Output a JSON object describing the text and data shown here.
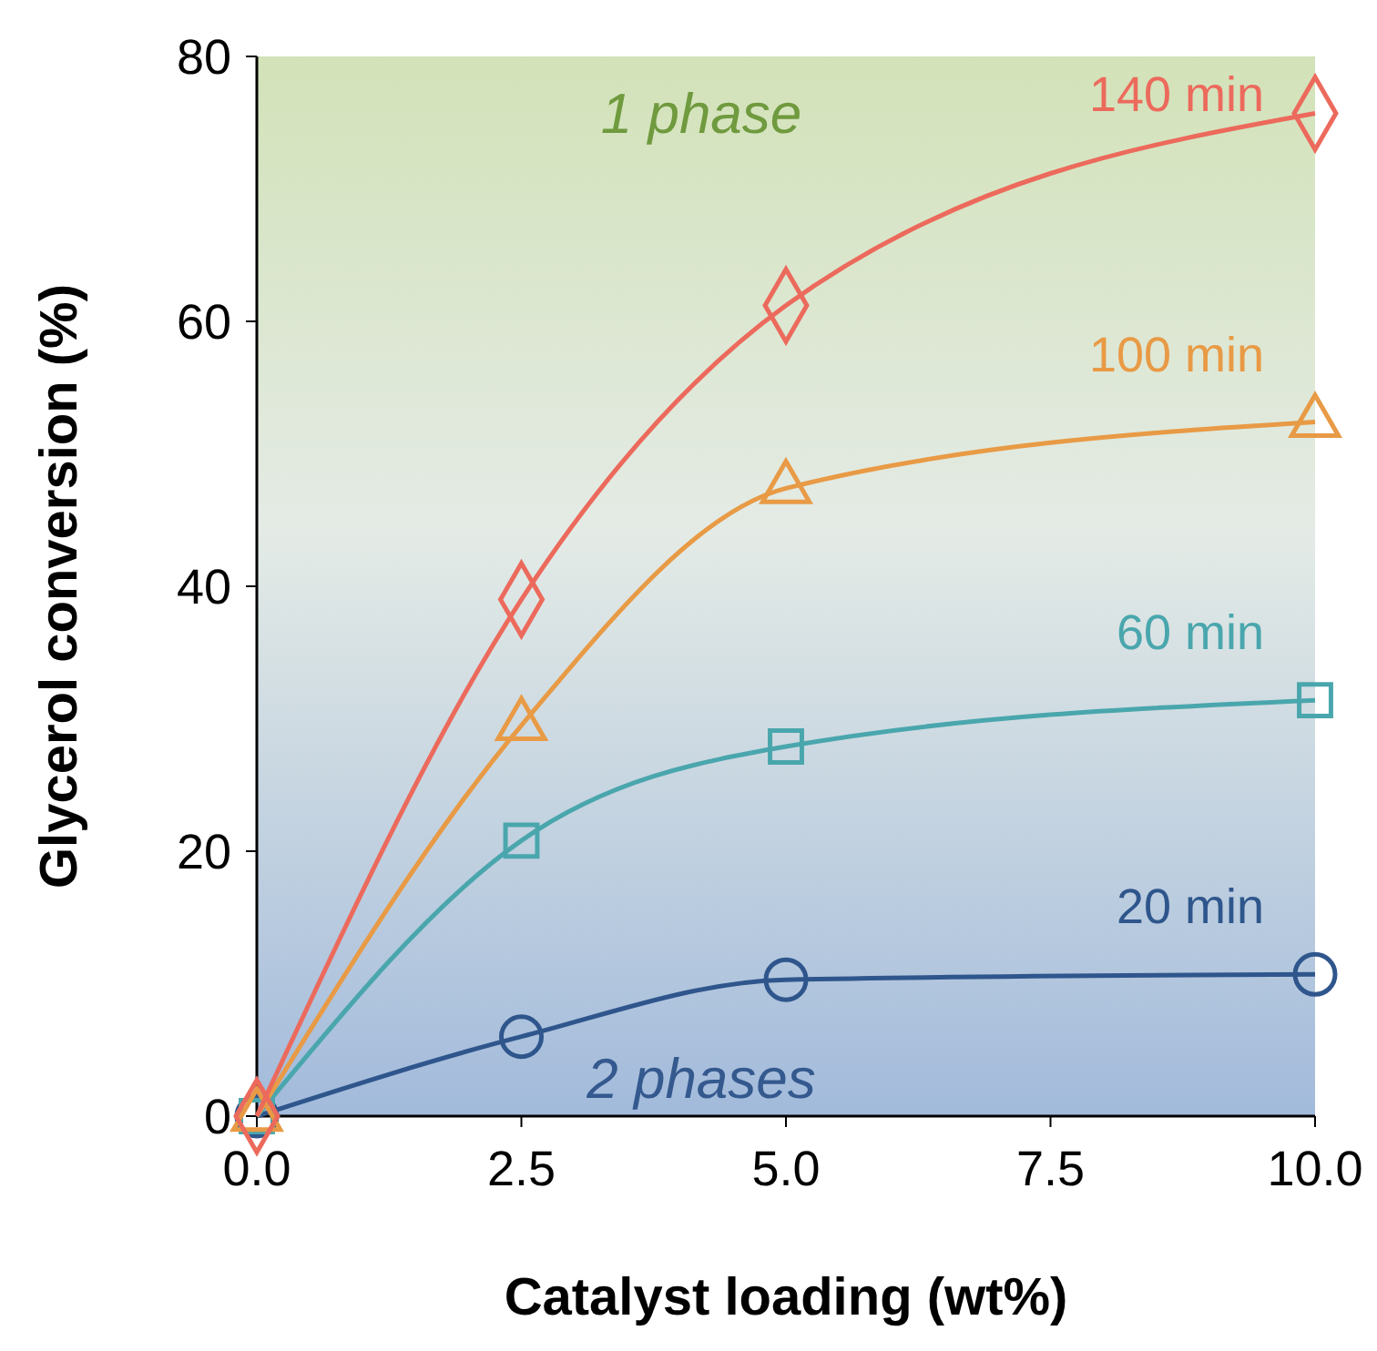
{
  "chart_data": {
    "type": "line",
    "xlabel": "Catalyst loading (wt%)",
    "ylabel": "Glycerol conversion (%)",
    "x": [
      0,
      2.5,
      5,
      10
    ],
    "xlim": [
      0,
      10
    ],
    "xticks": [
      {
        "value": 0,
        "label": "0.0"
      },
      {
        "value": 2.5,
        "label": "2.5"
      },
      {
        "value": 5,
        "label": "5.0"
      },
      {
        "value": 7.5,
        "label": "7.5"
      },
      {
        "value": 10,
        "label": "10.0"
      }
    ],
    "ylim": [
      0,
      80
    ],
    "yticks": [
      0,
      20,
      40,
      60,
      80
    ],
    "grid": false,
    "series": [
      {
        "name": "20 min",
        "color": "#2f568c",
        "marker": "circle",
        "values": [
          0,
          6.0,
          10.3,
          10.7
        ]
      },
      {
        "name": "60 min",
        "color": "#4aa6ad",
        "marker": "square",
        "values": [
          0,
          20.8,
          27.9,
          31.4
        ]
      },
      {
        "name": "100 min",
        "color": "#e89a45",
        "marker": "triangle",
        "values": [
          0,
          29.5,
          47.4,
          52.4
        ]
      },
      {
        "name": "140 min",
        "color": "#ec6a5c",
        "marker": "diamond",
        "values": [
          0,
          39.0,
          61.2,
          75.7
        ]
      }
    ],
    "annotations": [
      "1 phase",
      "2 phases"
    ]
  }
}
